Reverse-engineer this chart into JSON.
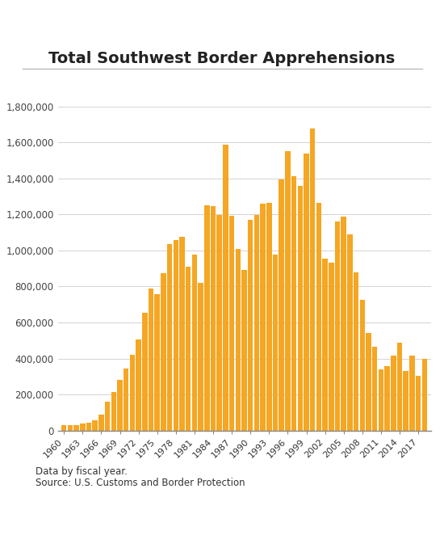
{
  "title": "Total Southwest Border Apprehensions",
  "bar_color": "#F5A623",
  "bar_edge_color": "#E08800",
  "background_color": "#ffffff",
  "source_line1": "Data by fiscal year.",
  "source_line2": "Source: U.S. Customs and Border Protection",
  "ylim": [
    0,
    1900000
  ],
  "yticks": [
    0,
    200000,
    400000,
    600000,
    800000,
    1000000,
    1200000,
    1400000,
    1600000,
    1800000
  ],
  "years": [
    1960,
    1961,
    1962,
    1963,
    1964,
    1965,
    1966,
    1967,
    1968,
    1969,
    1970,
    1971,
    1972,
    1973,
    1974,
    1975,
    1976,
    1977,
    1978,
    1979,
    1980,
    1981,
    1982,
    1983,
    1984,
    1985,
    1986,
    1987,
    1988,
    1989,
    1990,
    1991,
    1992,
    1993,
    1994,
    1995,
    1996,
    1997,
    1998,
    1999,
    2000,
    2001,
    2002,
    2003,
    2004,
    2005,
    2006,
    2007,
    2008,
    2009,
    2010,
    2011,
    2012,
    2013,
    2014,
    2015,
    2016,
    2017,
    2018
  ],
  "values": [
    30000,
    29651,
    30272,
    39124,
    43844,
    55349,
    89751,
    161779,
    212057,
    283557,
    345353,
    420126,
    505949,
    655968,
    788145,
    756819,
    875915,
    1033642,
    1057977,
    1076418,
    910361,
    975780,
    819919,
    1251357,
    1246981,
    1197875,
    1586127,
    1190488,
    1008145,
    891147,
    1169939,
    1197875,
    1258482,
    1263490,
    979101,
    1394554,
    1549876,
    1412953,
    1357870,
    1537000,
    1676438,
    1266214,
    955310,
    931557,
    1160395,
    1189075,
    1089092,
    876704,
    723825,
    540865,
    463382,
    340252,
    357422,
    414397,
    486651,
    331333,
    415816,
    303916,
    396579
  ],
  "xtick_years": [
    1960,
    1963,
    1966,
    1969,
    1972,
    1975,
    1978,
    1981,
    1984,
    1987,
    1990,
    1993,
    1996,
    1999,
    2002,
    2005,
    2008,
    2011,
    2014,
    2017
  ]
}
